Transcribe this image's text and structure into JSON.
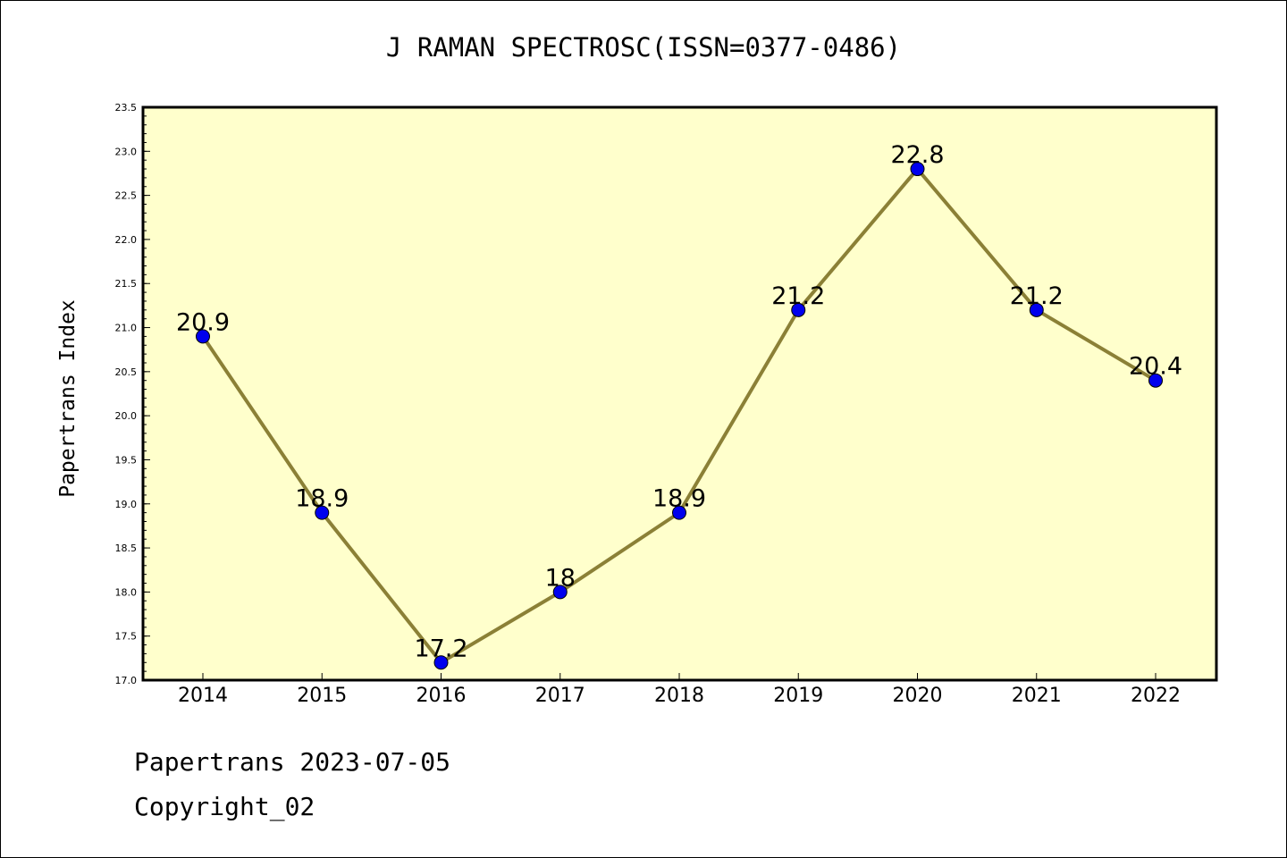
{
  "chart_data": {
    "type": "line",
    "title": "J RAMAN SPECTROSC(ISSN=0377-0486)",
    "xlabel": "",
    "ylabel": "Papertrans Index",
    "categories": [
      "2014",
      "2015",
      "2016",
      "2017",
      "2018",
      "2019",
      "2020",
      "2021",
      "2022"
    ],
    "series": [
      {
        "values": [
          20.9,
          18.9,
          17.2,
          18,
          18.9,
          21.2,
          22.8,
          21.2,
          20.4
        ],
        "data_labels": [
          "20.9",
          "18.9",
          "17.2",
          "18",
          "18.9",
          "21.2",
          "22.8",
          "21.2",
          "20.4"
        ]
      }
    ],
    "ylim": [
      17.0,
      23.5
    ],
    "yticks": [
      "17.0",
      "17.5",
      "18.0",
      "18.5",
      "19.0",
      "19.5",
      "20.0",
      "20.5",
      "21.0",
      "21.5",
      "22.0",
      "22.5",
      "23.0",
      "23.5"
    ],
    "grid": false,
    "legend": "none"
  },
  "colors": {
    "plot_background": "#ffffcc",
    "line": "#8b8036",
    "marker": "#0000ee"
  },
  "footer": {
    "line1": "Papertrans 2023-07-05",
    "line2": "Copyright_02"
  }
}
